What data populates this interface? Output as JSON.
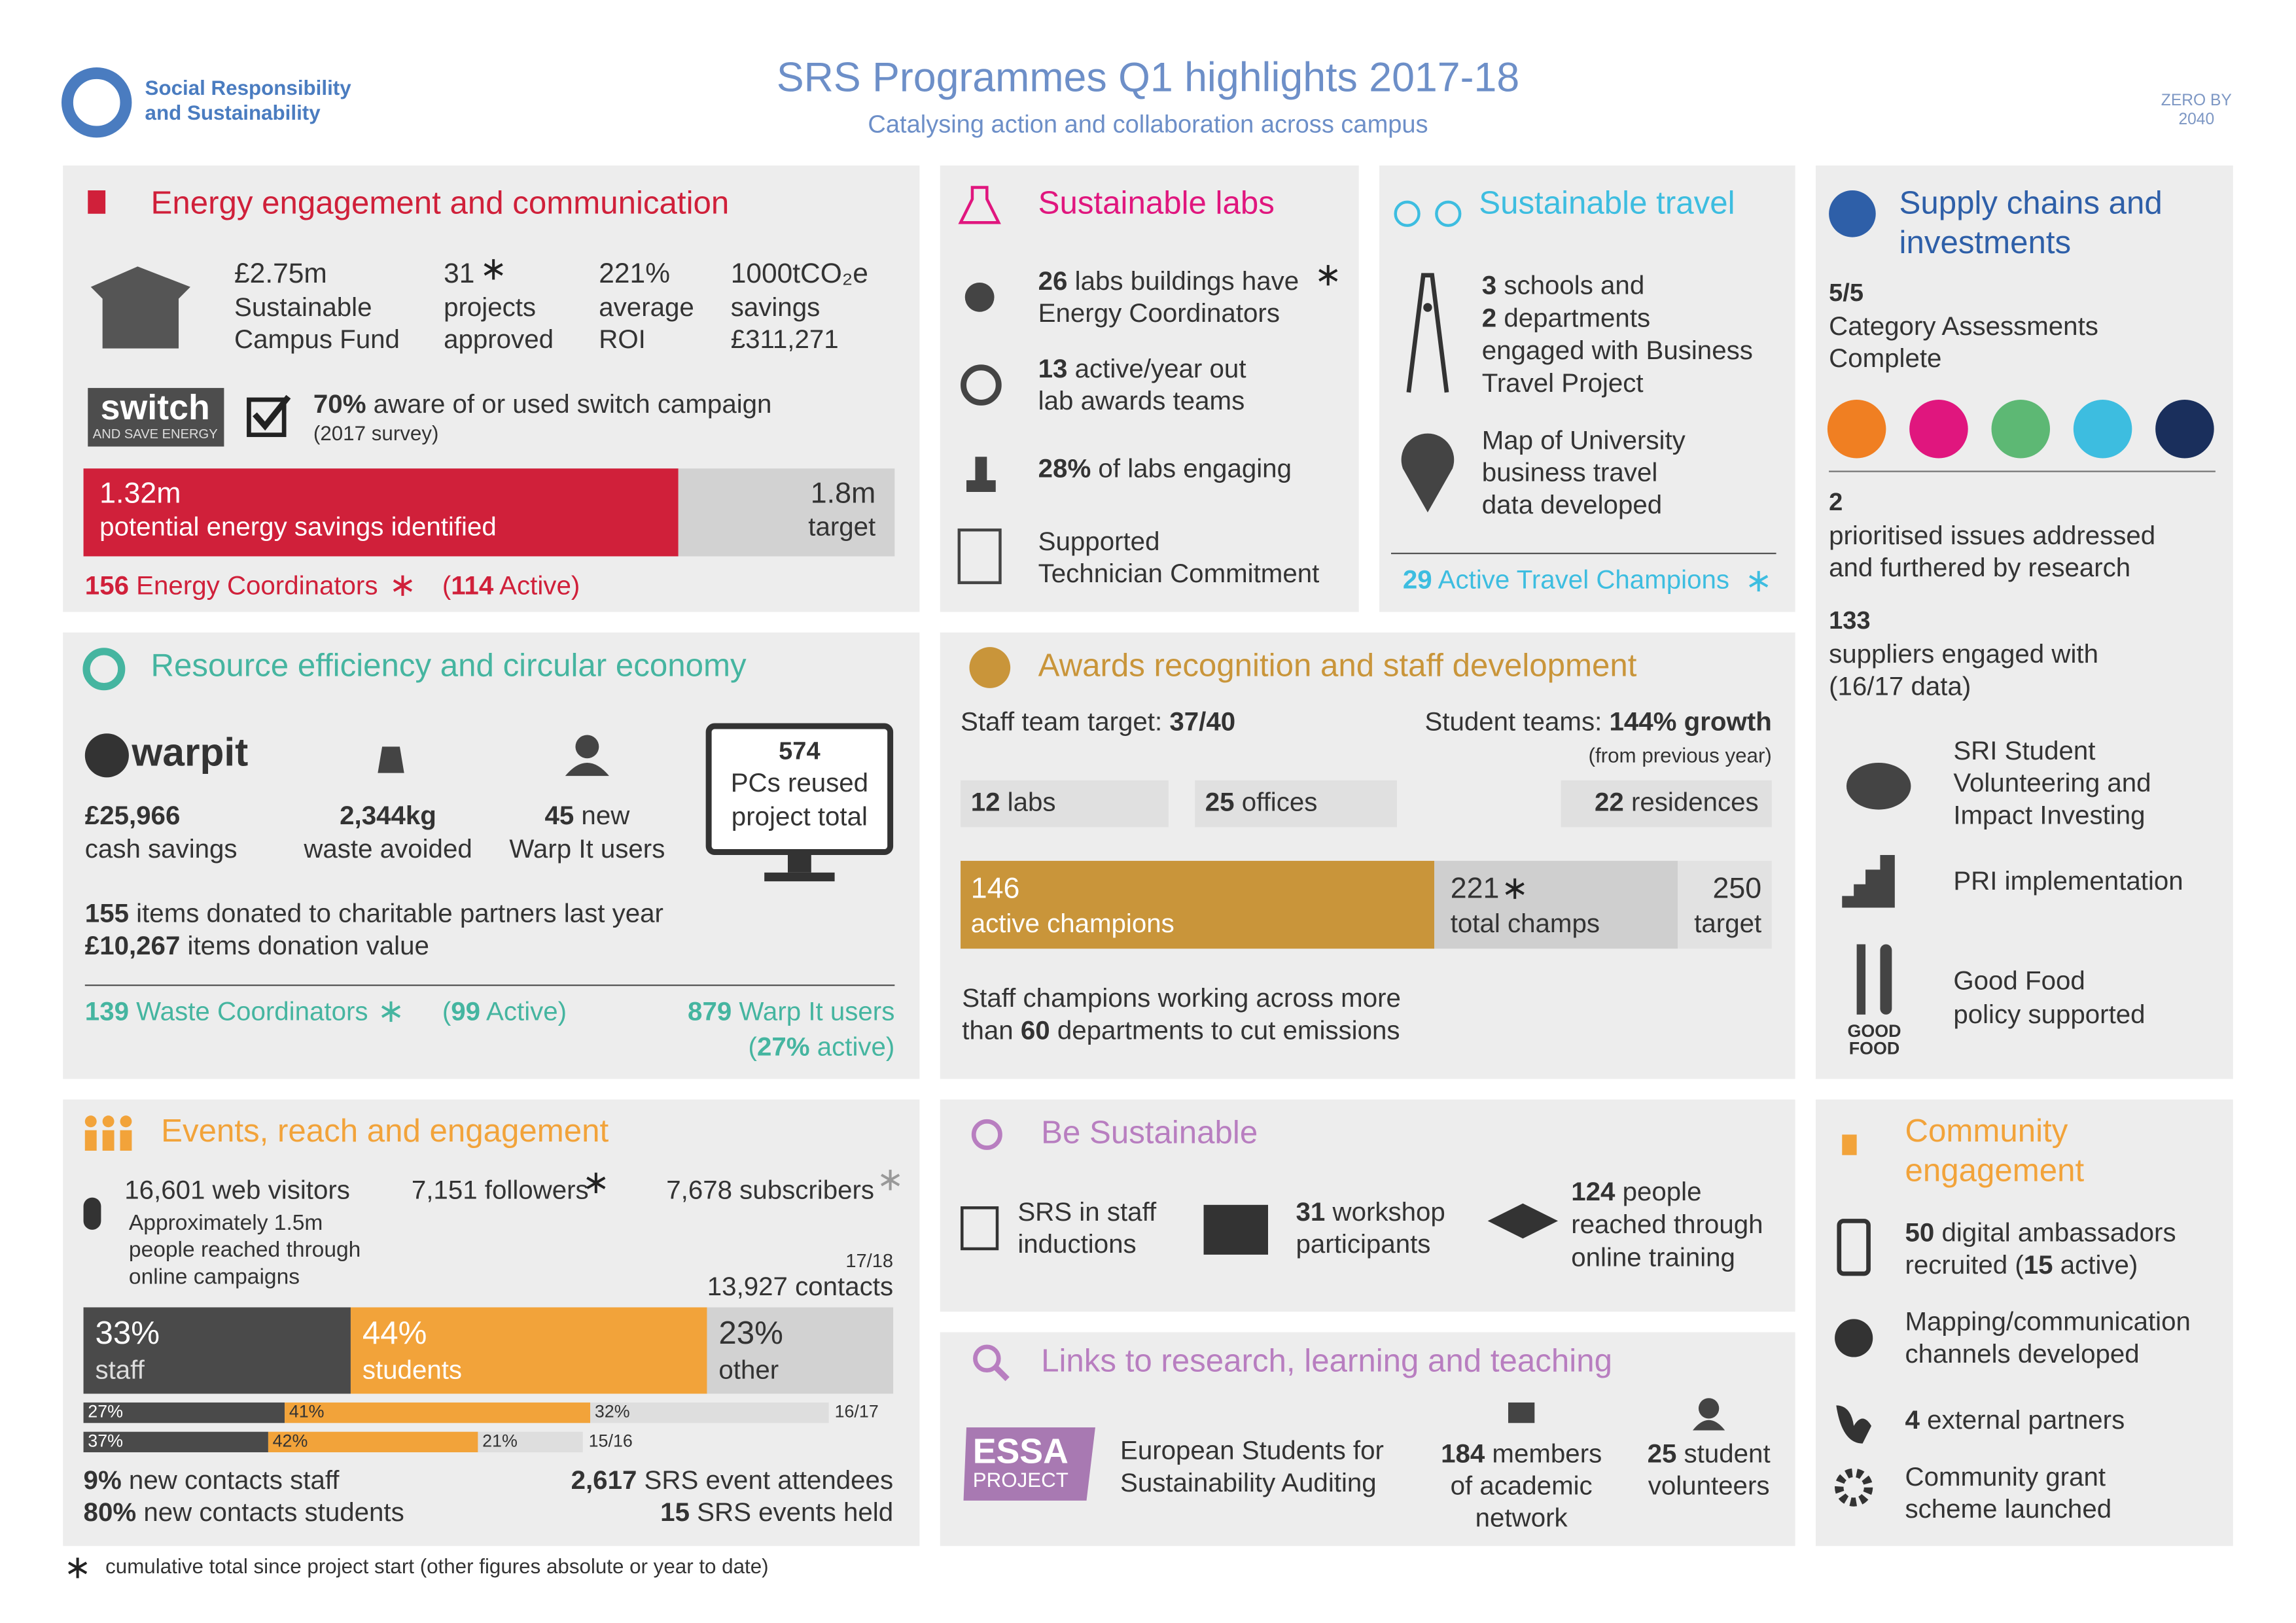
{
  "header": {
    "org": [
      "Social Responsibility",
      "and Sustainability"
    ],
    "title": "SRS Programmes Q1 highlights 2017-18",
    "subtitle": "Catalysing action and collaboration across campus",
    "badge": [
      "ZERO BY",
      "2040"
    ]
  },
  "energy": {
    "title": "Energy engagement and communication",
    "stats": [
      {
        "value": "£2.75m",
        "label": [
          "Sustainable",
          "Campus Fund"
        ]
      },
      {
        "value": "31",
        "label": [
          "projects",
          "approved"
        ]
      },
      {
        "value": "221%",
        "label": [
          "average",
          "ROI"
        ]
      },
      {
        "value": "1000tCO₂e",
        "label": [
          "savings",
          "£311,271"
        ]
      }
    ],
    "switch_logo": [
      "switch",
      "AND SAVE ENERGY"
    ],
    "survey": [
      [
        {
          "b": "70%"
        },
        " aware of or used switch campaign"
      ],
      "(2017 survey)"
    ],
    "bar": {
      "value": 1.32,
      "value_label": "1.32m",
      "label": "potential energy savings identified",
      "target": 1.8,
      "target_label": "1.8m",
      "target_text": "target"
    },
    "coordinators": [
      {
        "b": "156"
      },
      " Energy Coordinators"
    ],
    "active": [
      "(",
      {
        "b": "114"
      },
      " Active)"
    ]
  },
  "labs": {
    "title": "Sustainable labs",
    "items": [
      [
        [
          {
            "b": "26"
          },
          " labs buildings have"
        ],
        "Energy Coordinators"
      ],
      [
        [
          {
            "b": "13"
          },
          " active/year out"
        ],
        "lab awards teams"
      ],
      [
        [
          {
            "b": "28%"
          },
          " of labs engaging"
        ]
      ],
      [
        "Supported",
        "Technician Commitment"
      ]
    ]
  },
  "travel": {
    "title": "Sustainable travel",
    "business": [
      [
        {
          "b": "3"
        },
        " schools and"
      ],
      [
        {
          "b": "2"
        },
        " departments"
      ],
      "engaged with Business",
      "Travel Project"
    ],
    "map": [
      "Map of University",
      "business travel",
      "data developed"
    ],
    "champions": [
      {
        "b": "29"
      },
      " Active Travel Champions"
    ]
  },
  "supply": {
    "title": [
      "Supply chains and",
      "investments"
    ],
    "assessments": {
      "value": "5/5",
      "label": [
        "Category Assessments",
        "Complete"
      ]
    },
    "issues": {
      "value": "2",
      "label": [
        "prioritised issues addressed",
        "and furthered by research"
      ]
    },
    "suppliers": {
      "value": "133",
      "label": [
        "suppliers engaged with",
        "(16/17 data)"
      ]
    },
    "sri": [
      "SRI Student",
      "Volunteering and",
      "Impact Investing"
    ],
    "pri": "PRI implementation",
    "food": [
      "Good Food",
      "policy supported"
    ],
    "food_logo": [
      "GOOD",
      "FOOD"
    ]
  },
  "resource": {
    "title": "Resource efficiency and circular economy",
    "warpit_logo": "warpit",
    "stats": [
      {
        "value": [
          {
            "b": "£25,966"
          }
        ],
        "label": "cash savings"
      },
      {
        "value": [
          {
            "b": "2,344kg"
          }
        ],
        "label": "waste avoided"
      },
      {
        "value": [
          {
            "b": "45"
          },
          " new"
        ],
        "label": "Warp It users"
      }
    ],
    "pcs": {
      "value": "574",
      "label": [
        "PCs reused",
        "project total"
      ]
    },
    "donations": [
      [
        {
          "b": "155"
        },
        " items donated to charitable partners last year"
      ],
      [
        {
          "b": "£10,267"
        },
        " items donation value"
      ]
    ],
    "coordinators": [
      {
        "b": "139"
      },
      " Waste Coordinators"
    ],
    "active": [
      "(",
      {
        "b": "99"
      },
      " Active)"
    ],
    "users": [
      [
        {
          "b": "879"
        },
        " Warp It users"
      ],
      [
        "(",
        {
          "b": "27%"
        },
        " active)"
      ]
    ]
  },
  "awards": {
    "title": "Awards recognition and staff development",
    "staff_target": [
      "Staff team target: ",
      {
        "b": "37/40"
      }
    ],
    "student_teams": [
      "Student teams: ",
      {
        "b": "144% growth"
      }
    ],
    "student_note": "(from previous year)",
    "teams": [
      [
        {
          "b": "12"
        },
        " labs"
      ],
      [
        {
          "b": "25"
        },
        " offices"
      ],
      [
        {
          "b": "22"
        },
        " residences"
      ]
    ],
    "champions": {
      "active": 146,
      "active_label": "active champions",
      "total": 221,
      "total_label": "total champs",
      "target": 250,
      "target_text": "target"
    },
    "note": [
      "Staff champions working across more",
      [
        "than ",
        {
          "b": "60"
        },
        " departments to cut emissions"
      ]
    ]
  },
  "events": {
    "title": "Events, reach and engagement",
    "web": "16,601 web visitors",
    "web_note": [
      "Approximately 1.5m",
      "people reached through",
      "online campaigns"
    ],
    "followers": "7,151 followers",
    "subscribers": "7,678 subscribers",
    "period": "17/18",
    "contacts": "13,927 contacts",
    "segments": [
      {
        "value": 33,
        "label": "33%",
        "name": "staff",
        "color": "#4a4a4a"
      },
      {
        "value": 44,
        "label": "44%",
        "name": "students",
        "color": "#f2a33a"
      },
      {
        "value": 23,
        "label": "23%",
        "name": "other",
        "color": "#d2d2d2"
      }
    ],
    "history": [
      {
        "period": "16/17",
        "segments": [
          {
            "value": 27,
            "label": "27%",
            "color": "#4a4a4a"
          },
          {
            "value": 41,
            "label": "41%",
            "color": "#f2a33a"
          },
          {
            "value": 32,
            "label": "32%",
            "color": "#dedede"
          }
        ]
      },
      {
        "period": "15/16",
        "segments": [
          {
            "value": 37,
            "label": "37%",
            "color": "#4a4a4a"
          },
          {
            "value": 42,
            "label": "42%",
            "color": "#f2a33a"
          },
          {
            "value": 21,
            "label": "21%",
            "color": "#dedede"
          }
        ]
      }
    ],
    "new_contacts": [
      [
        {
          "b": "9%"
        },
        " new contacts staff"
      ],
      [
        {
          "b": "80%"
        },
        " new contacts students"
      ]
    ],
    "events": [
      [
        {
          "b": "2,617"
        },
        " SRS event attendees"
      ],
      [
        {
          "b": "15"
        },
        " SRS events held"
      ]
    ]
  },
  "be_sustainable": {
    "title": "Be Sustainable",
    "inductions": [
      "SRS in staff",
      "inductions"
    ],
    "workshop": [
      [
        {
          "b": "31"
        },
        " workshop"
      ],
      "participants"
    ],
    "training": [
      [
        {
          "b": "124"
        },
        " people"
      ],
      "reached through",
      "online training"
    ]
  },
  "links": {
    "title": "Links to research, learning and teaching",
    "essa_logo": [
      "ESSA",
      "PROJECT"
    ],
    "essa": [
      "European Students for",
      "Sustainability Auditing"
    ],
    "members": [
      [
        {
          "b": "184"
        },
        " members"
      ],
      "of academic",
      "network"
    ],
    "volunteers": [
      [
        {
          "b": "25"
        },
        " student"
      ],
      "volunteers"
    ]
  },
  "community": {
    "title": [
      "Community",
      "engagement"
    ],
    "ambassadors": [
      [
        {
          "b": "50"
        },
        " digital ambassadors"
      ],
      [
        "recruited (",
        {
          "b": "15"
        },
        " active)"
      ]
    ],
    "mapping": [
      "Mapping/communication",
      "channels developed"
    ],
    "partners": [
      {
        "b": "4"
      },
      " external partners"
    ],
    "grant": [
      "Community grant",
      "scheme launched"
    ]
  },
  "footnote": "cumulative total since project start (other figures absolute or year to date)"
}
